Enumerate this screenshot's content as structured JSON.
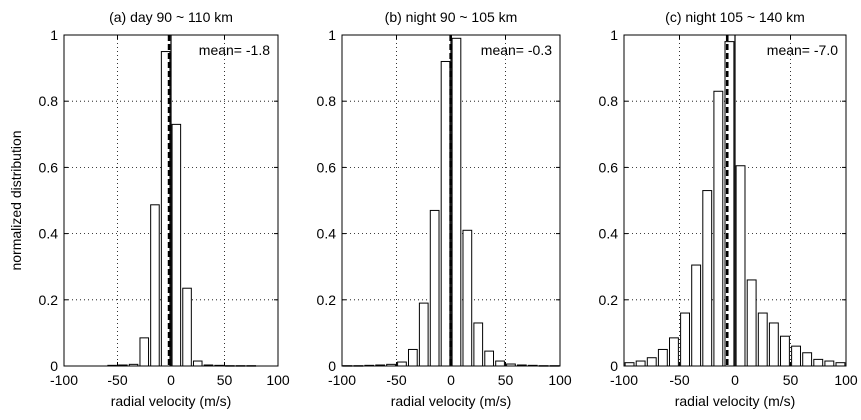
{
  "figure": {
    "ylabel": "normalized distribution"
  },
  "chart_data": [
    {
      "type": "bar",
      "title": "(a) day 90 ~ 110 km",
      "xlabel": "radial velocity (m/s)",
      "ylabel": "normalized distribution",
      "xlim": [
        -100,
        100
      ],
      "ylim": [
        0,
        1
      ],
      "xticks": [
        "-100",
        "-50",
        "0",
        "50",
        "100"
      ],
      "yticks": [
        "0",
        "0.2",
        "0.4",
        "0.6",
        "0.8",
        "1"
      ],
      "grid": true,
      "bin_width": 10,
      "bin_centers": [
        -55,
        -45,
        -35,
        -25,
        -15,
        -5,
        5,
        15,
        25,
        35,
        45,
        55,
        65,
        75
      ],
      "values": [
        0.002,
        0.003,
        0.005,
        0.085,
        0.487,
        0.95,
        0.73,
        0.235,
        0.015,
        0.003,
        0.002,
        0.001,
        0.001,
        0.001
      ],
      "mean_value": -1.8,
      "mean_label": "mean= -1.8"
    },
    {
      "type": "bar",
      "title": "(b) night 90 ~ 105 km",
      "xlabel": "radial velocity (m/s)",
      "ylabel": "",
      "xlim": [
        -100,
        100
      ],
      "ylim": [
        0,
        1
      ],
      "xticks": [
        "-100",
        "-50",
        "0",
        "50",
        "100"
      ],
      "yticks": [
        "0",
        "0.2",
        "0.4",
        "0.6",
        "0.8",
        "1"
      ],
      "grid": true,
      "bin_width": 10,
      "bin_centers": [
        -95,
        -85,
        -75,
        -65,
        -55,
        -45,
        -35,
        -25,
        -15,
        -5,
        5,
        15,
        25,
        35,
        45,
        55,
        65,
        75,
        85,
        95
      ],
      "values": [
        0.001,
        0.001,
        0.002,
        0.003,
        0.005,
        0.012,
        0.05,
        0.19,
        0.47,
        0.92,
        0.99,
        0.41,
        0.13,
        0.045,
        0.015,
        0.006,
        0.003,
        0.002,
        0.001,
        0.001
      ],
      "mean_value": -0.3,
      "mean_label": "mean= -0.3"
    },
    {
      "type": "bar",
      "title": "(c) night 105 ~ 140 km",
      "xlabel": "radial velocity (m/s)",
      "ylabel": "",
      "xlim": [
        -100,
        100
      ],
      "ylim": [
        0,
        1
      ],
      "xticks": [
        "-100",
        "-50",
        "0",
        "50",
        "100"
      ],
      "yticks": [
        "0",
        "0.2",
        "0.4",
        "0.6",
        "0.8",
        "1"
      ],
      "grid": true,
      "bin_width": 10,
      "bin_centers": [
        -95,
        -85,
        -75,
        -65,
        -55,
        -45,
        -35,
        -25,
        -15,
        -5,
        5,
        15,
        25,
        35,
        45,
        55,
        65,
        75,
        85,
        95
      ],
      "values": [
        0.01,
        0.015,
        0.025,
        0.05,
        0.085,
        0.16,
        0.305,
        0.53,
        0.83,
        0.98,
        0.605,
        0.26,
        0.16,
        0.13,
        0.09,
        0.06,
        0.04,
        0.02,
        0.015,
        0.01
      ],
      "mean_value": -7.0,
      "mean_label": "mean= -7.0"
    }
  ]
}
